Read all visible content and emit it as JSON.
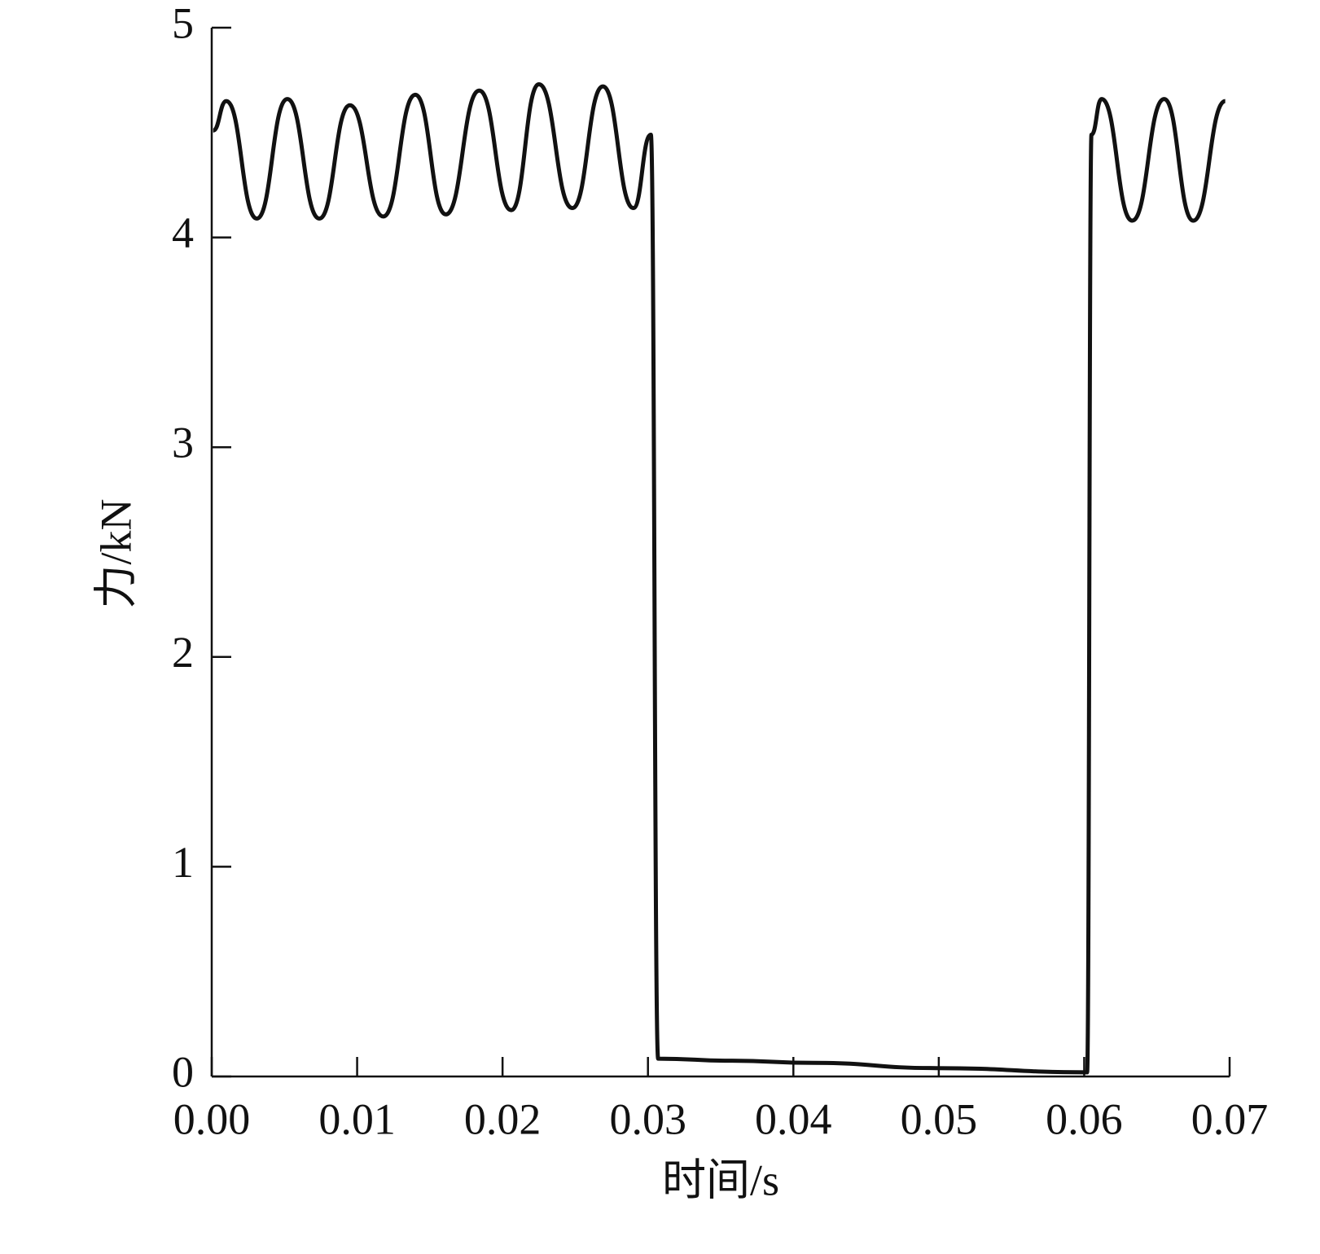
{
  "chart_data": {
    "type": "line",
    "x_label": "时间/s",
    "y_label": "力/kN",
    "x": [
      0.0001,
      0.001,
      0.0031,
      0.0052,
      0.0074,
      0.0095,
      0.0118,
      0.014,
      0.0161,
      0.0184,
      0.0206,
      0.0225,
      0.0248,
      0.0269,
      0.029,
      0.0302,
      0.0307,
      0.0358,
      0.0414,
      0.0498,
      0.0602,
      0.0605,
      0.0612,
      0.0633,
      0.0655,
      0.0675,
      0.0697
    ],
    "values": [
      4.51,
      4.65,
      4.09,
      4.66,
      4.09,
      4.63,
      4.1,
      4.68,
      4.11,
      4.7,
      4.13,
      4.73,
      4.14,
      4.72,
      4.14,
      4.49,
      0.085,
      0.075,
      0.065,
      0.04,
      0.02,
      4.49,
      4.66,
      4.08,
      4.66,
      4.08,
      4.65
    ],
    "color": "#111111",
    "xlim": [
      0,
      0.07
    ],
    "xticks": [
      {
        "value": 0,
        "label": "0.00"
      },
      {
        "value": 0.01,
        "label": "0.01"
      },
      {
        "value": 0.02,
        "label": "0.02"
      },
      {
        "value": 0.03,
        "label": "0.03"
      },
      {
        "value": 0.04,
        "label": "0.04"
      },
      {
        "value": 0.05,
        "label": "0.05"
      },
      {
        "value": 0.06,
        "label": "0.06"
      },
      {
        "value": 0.07,
        "label": "0.07"
      }
    ],
    "ylim": [
      0,
      5
    ],
    "yticks": [
      0,
      1,
      2,
      3,
      4,
      5
    ],
    "grid": false
  }
}
